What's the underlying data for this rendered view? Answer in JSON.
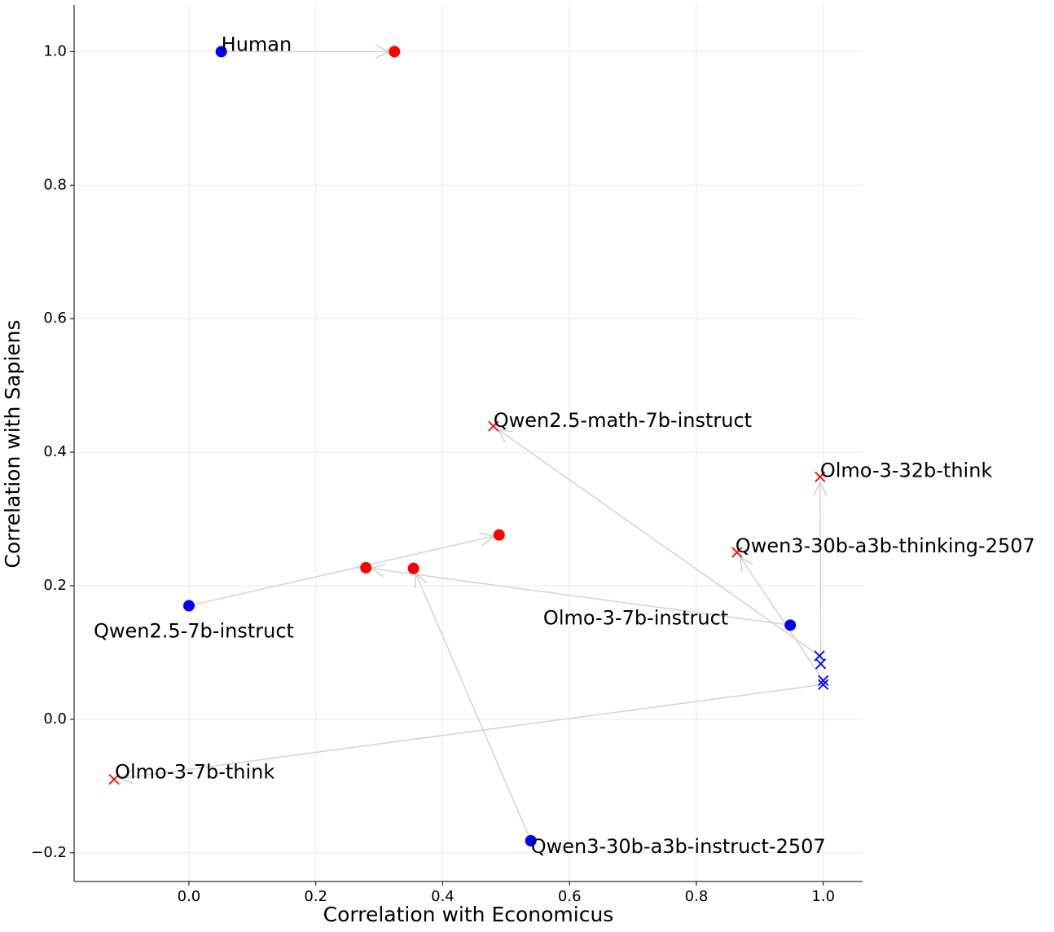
{
  "chart_data": {
    "type": "scatter",
    "xlabel": "Correlation with Economicus",
    "ylabel": "Correlation with Sapiens",
    "xlim": [
      -0.181,
      1.062
    ],
    "ylim": [
      -0.243,
      1.07
    ],
    "xticks": [
      {
        "value": 0,
        "label": "0.0"
      },
      0.2,
      0.4,
      0.6,
      0.8,
      {
        "value": 1,
        "label": "1.0"
      }
    ],
    "yticks": [
      {
        "value": -0.2,
        "label": "−0.2"
      },
      {
        "value": 0,
        "label": "0.0"
      },
      0.2,
      0.4,
      0.6,
      0.8,
      {
        "value": 1,
        "label": "1.0"
      }
    ],
    "grid": true,
    "colors": [
      "#0000ff",
      "#ff0000"
    ],
    "series": [
      {
        "name": "Human",
        "marker": "o",
        "x": [
          0.051,
          0.324
        ],
        "y": [
          1.0,
          1.0
        ]
      },
      {
        "name": "Qwen2.5-7b-instruct",
        "marker": "o",
        "x": [
          0.0,
          0.489
        ],
        "y": [
          0.17,
          0.276
        ]
      },
      {
        "name": "Olmo-3-7b-instruct",
        "marker": "o",
        "x": [
          0.948,
          0.279
        ],
        "y": [
          0.141,
          0.227
        ]
      },
      {
        "name": "Qwen3-30b-a3b-instruct-2507",
        "marker": "o",
        "x": [
          0.539,
          0.354
        ],
        "y": [
          -0.182,
          0.226
        ]
      },
      {
        "name": "Qwen2.5-math-7b-instruct",
        "marker": "x",
        "x": [
          0.994,
          0.48
        ],
        "y": [
          0.095,
          0.439
        ]
      },
      {
        "name": "Olmo-3-32b-think",
        "marker": "x",
        "x": [
          0.996,
          0.995
        ],
        "y": [
          0.083,
          0.363
        ]
      },
      {
        "name": "Qwen3-30b-a3b-thinking-2507",
        "marker": "x",
        "x": [
          1.0,
          0.864
        ],
        "y": [
          0.058,
          0.25
        ]
      },
      {
        "name": "Olmo-3-7b-think",
        "marker": "x",
        "x": [
          1.0,
          -0.118
        ],
        "y": [
          0.052,
          -0.09
        ]
      }
    ]
  }
}
